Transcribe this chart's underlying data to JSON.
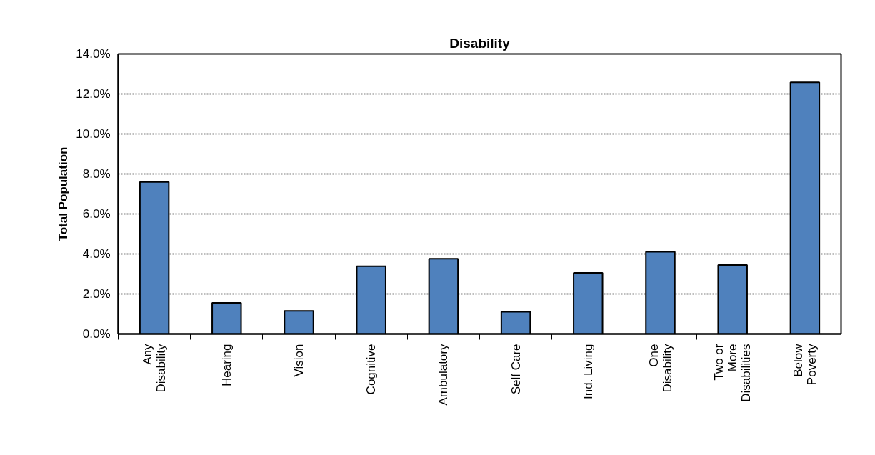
{
  "chart_data": {
    "type": "bar",
    "title": "Disability",
    "ylabel": "Total Population",
    "categories": [
      "Any\nDisability",
      "Hearing",
      "Vision",
      "Cognitive",
      "Ambulatory",
      "Self Care",
      "Ind. Living",
      "One\nDisability",
      "Two or\nMore\nDisabilities",
      "Below\nPoverty"
    ],
    "values": [
      7.6,
      1.55,
      1.15,
      3.38,
      3.76,
      1.11,
      3.05,
      4.11,
      3.45,
      12.58
    ],
    "color": "#4f81bd",
    "ylim": [
      0,
      14
    ],
    "yticks": [
      {
        "value": 0,
        "label": "0.0%"
      },
      {
        "value": 2,
        "label": "2.0%"
      },
      {
        "value": 4,
        "label": "4.0%"
      },
      {
        "value": 6,
        "label": "6.0%"
      },
      {
        "value": 8,
        "label": "8.0%"
      },
      {
        "value": 10,
        "label": "10.0%"
      },
      {
        "value": 12,
        "label": "12.0%"
      },
      {
        "value": 14,
        "label": "14.0%"
      }
    ],
    "grid": "y"
  }
}
